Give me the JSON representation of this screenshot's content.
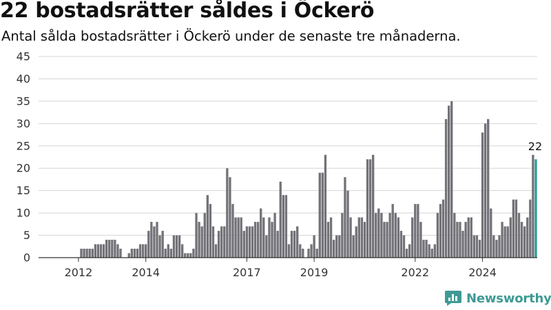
{
  "title": "22 bostadsrätter såldes i Öckerö",
  "subtitle": "Antal sålda bostadsrätter i Öckerö under de senaste tre månaderna.",
  "logo_text": "Newsworthy",
  "colors": {
    "bar": "#737278",
    "highlight": "#2a9d95",
    "grid": "#d5d5d5",
    "axis": "#333333",
    "logo": "#3e9a94"
  },
  "chart_data": {
    "type": "bar",
    "title": "22 bostadsrätter såldes i Öckerö",
    "subtitle": "Antal sålda bostadsrätter i Öckerö under de senaste tre månaderna.",
    "xlabel": "",
    "ylabel": "",
    "ylim": [
      0,
      45
    ],
    "yticks": [
      0,
      5,
      10,
      15,
      20,
      25,
      30,
      35,
      40,
      45
    ],
    "grid": true,
    "xticks": [
      "2012",
      "2014",
      "2017",
      "2019",
      "2022",
      "2024"
    ],
    "frequency": "monthly",
    "start": "2011-01",
    "end": "2024-11",
    "values": [
      0,
      0,
      0,
      0,
      0,
      0,
      0,
      0,
      0,
      0,
      0,
      0,
      0,
      2,
      2,
      2,
      2,
      2,
      3,
      3,
      3,
      3,
      4,
      4,
      4,
      4,
      3,
      2,
      0,
      0,
      1,
      2,
      2,
      2,
      3,
      3,
      3,
      6,
      8,
      7,
      8,
      5,
      6,
      2,
      3,
      2,
      5,
      5,
      5,
      3,
      1,
      1,
      1,
      2,
      10,
      8,
      7,
      10,
      14,
      12,
      7,
      3,
      6,
      7,
      7,
      20,
      18,
      12,
      9,
      9,
      9,
      6,
      7,
      7,
      7,
      8,
      8,
      11,
      9,
      5,
      9,
      8,
      10,
      6,
      17,
      14,
      14,
      3,
      6,
      6,
      7,
      3,
      2,
      0,
      2,
      3,
      5,
      2,
      19,
      19,
      23,
      8,
      9,
      4,
      5,
      5,
      10,
      18,
      15,
      9,
      5,
      7,
      9,
      9,
      8,
      22,
      22,
      23,
      10,
      11,
      10,
      8,
      8,
      10,
      12,
      10,
      9,
      6,
      5,
      2,
      3,
      9,
      12,
      12,
      8,
      4,
      4,
      3,
      2,
      3,
      10,
      12,
      13,
      31,
      34,
      35,
      10,
      8,
      8,
      6,
      8,
      9,
      9,
      5,
      5,
      4,
      28,
      30,
      31,
      11,
      5,
      4,
      5,
      8,
      7,
      7,
      9,
      13,
      13,
      10,
      8,
      7,
      9,
      13,
      23,
      22
    ],
    "highlight_last": true,
    "last_value_label": "22"
  }
}
